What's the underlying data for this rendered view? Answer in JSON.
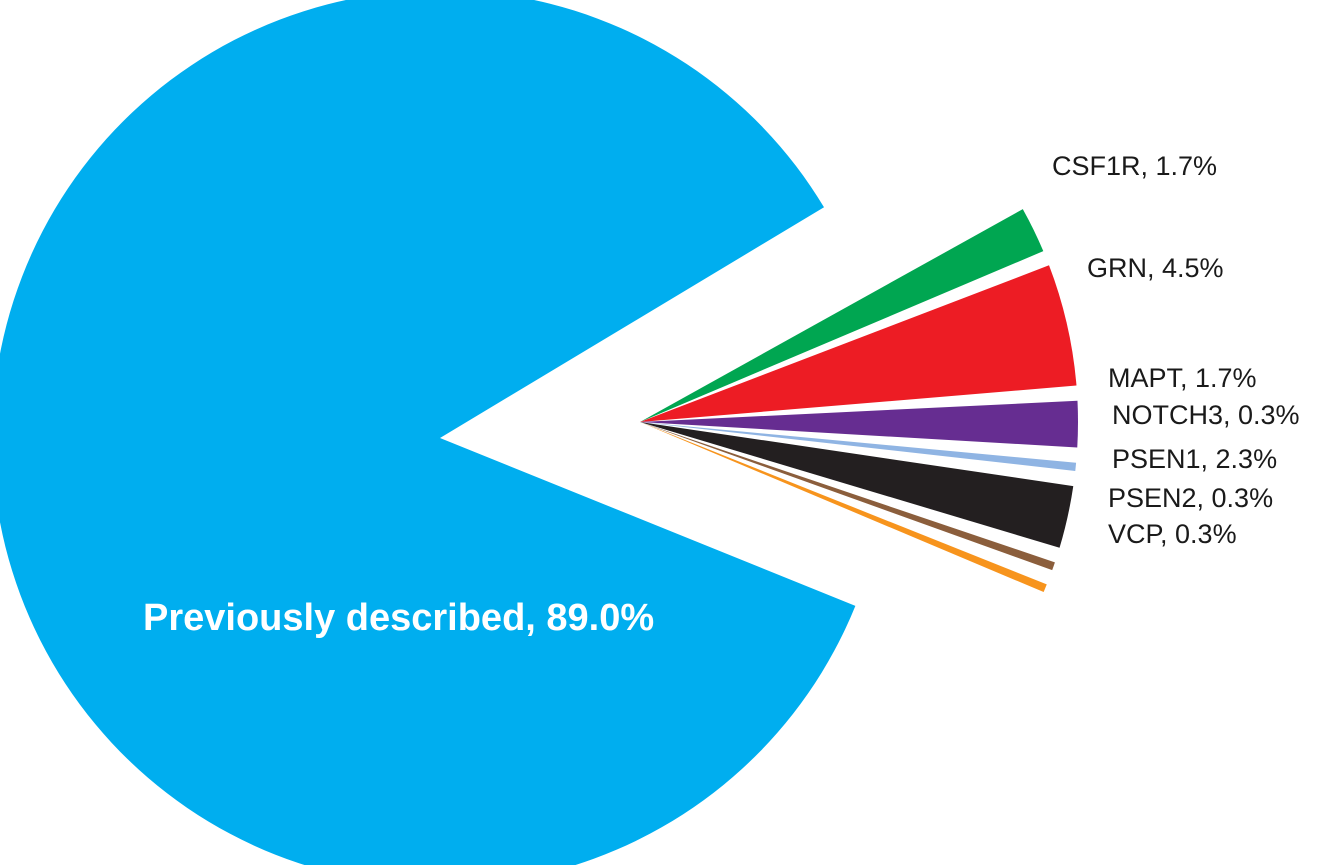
{
  "chart_data": {
    "type": "pie",
    "title": "",
    "legend": "none",
    "slices": [
      {
        "label": "Previously described, 89.0%",
        "category": "Previously described",
        "value": 89.0,
        "color": "#00AEEF"
      },
      {
        "label": "CSF1R, 1.7%",
        "category": "CSF1R",
        "value": 1.7,
        "color": "#00A651"
      },
      {
        "label": "GRN, 4.5%",
        "category": "GRN",
        "value": 4.5,
        "color": "#ED1C24"
      },
      {
        "label": "MAPT, 1.7%",
        "category": "MAPT",
        "value": 1.7,
        "color": "#662D91"
      },
      {
        "label": "NOTCH3, 0.3%",
        "category": "NOTCH3",
        "value": 0.3,
        "color": "#8FB4E3"
      },
      {
        "label": "PSEN1, 2.3%",
        "category": "PSEN1",
        "value": 2.3,
        "color": "#231F20"
      },
      {
        "label": "PSEN2, 0.3%",
        "category": "PSEN2",
        "value": 0.3,
        "color": "#8B5E3C"
      },
      {
        "label": "VCP, 0.3%",
        "category": "VCP",
        "value": 0.3,
        "color": "#F7941D"
      }
    ]
  }
}
